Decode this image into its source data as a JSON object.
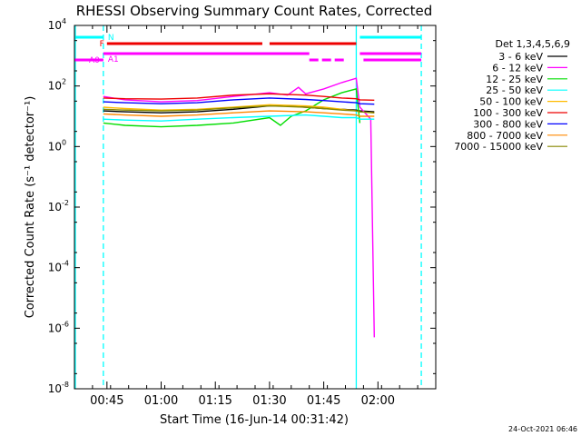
{
  "chart_data": {
    "type": "line",
    "title": "RHESSI Observing Summary Count Rates, Corrected",
    "xlabel": "Start Time (16-Jun-14 00:31:42)",
    "ylabel": "Corrected Count Rate (s⁻¹ detector⁻¹)",
    "yscale": "log",
    "xlim_minutes_after_0030": [
      6,
      40,
      106
    ],
    "xlim": [
      "00:36",
      "02:16"
    ],
    "ylim": [
      1e-08,
      10000
    ],
    "x_ticks": [
      "00:45",
      "01:00",
      "01:15",
      "01:30",
      "01:45",
      "02:00"
    ],
    "y_ticks": [
      {
        "base": "10",
        "exp": "4",
        "value": 10000
      },
      {
        "base": "10",
        "exp": "2",
        "value": 100
      },
      {
        "base": "10",
        "exp": "0",
        "value": 1
      },
      {
        "base": "10",
        "exp": "-2",
        "value": 0.01
      },
      {
        "base": "10",
        "exp": "-4",
        "value": 0.0001
      },
      {
        "base": "10",
        "exp": "-6",
        "value": 1e-06
      },
      {
        "base": "10",
        "exp": "-8",
        "value": 1e-08
      }
    ],
    "legend_title": "Det 1,3,4,5,6,9",
    "legend_placement": "right",
    "series": [
      {
        "name": "3 - 6 keV",
        "color": "#000000",
        "x": [
          "00:44",
          "00:50",
          "01:00",
          "01:10",
          "01:20",
          "01:30",
          "01:35",
          "01:40",
          "01:45",
          "01:50",
          "01:54",
          "01:55",
          "01:59"
        ],
        "y": [
          15,
          14,
          13,
          14,
          17,
          22,
          22,
          20,
          18,
          17,
          16,
          15,
          14
        ]
      },
      {
        "name": "6 - 12 keV",
        "color": "#ff00ff",
        "x": [
          "00:44",
          "00:50",
          "01:00",
          "01:10",
          "01:20",
          "01:30",
          "01:35",
          "01:38",
          "01:40",
          "01:45",
          "01:50",
          "01:54",
          "01:55",
          "01:58",
          "01:59"
        ],
        "y": [
          45,
          35,
          30,
          33,
          45,
          60,
          50,
          90,
          55,
          80,
          130,
          180,
          20,
          8,
          5e-07
        ]
      },
      {
        "name": "12 - 25 keV",
        "color": "#00dd00",
        "x": [
          "00:44",
          "00:50",
          "01:00",
          "01:10",
          "01:20",
          "01:30",
          "01:33",
          "01:36",
          "01:40",
          "01:45",
          "01:50",
          "01:54",
          "01:55"
        ],
        "y": [
          6,
          5,
          4.5,
          5,
          6,
          9,
          5,
          10,
          15,
          35,
          60,
          80,
          6
        ]
      },
      {
        "name": "25 - 50 keV",
        "color": "#00ffff",
        "x": [
          "00:44",
          "00:50",
          "01:00",
          "01:10",
          "01:20",
          "01:30",
          "01:40",
          "01:45",
          "01:50",
          "01:54",
          "01:55",
          "01:59"
        ],
        "y": [
          8,
          7.5,
          7,
          8,
          9,
          10,
          11,
          10,
          9,
          9,
          8,
          8
        ]
      },
      {
        "name": "50 - 100 keV",
        "color": "#ffbb00",
        "x": [
          "00:44",
          "00:50",
          "01:00",
          "01:10",
          "01:20",
          "01:30",
          "01:40",
          "01:45",
          "01:50",
          "01:54",
          "01:55",
          "01:59"
        ],
        "y": [
          20,
          18,
          16,
          17,
          20,
          24,
          22,
          20,
          17,
          15,
          14,
          13
        ]
      },
      {
        "name": "100 - 300 keV",
        "color": "#ee0000",
        "x": [
          "00:44",
          "00:50",
          "01:00",
          "01:10",
          "01:20",
          "01:30",
          "01:40",
          "01:45",
          "01:50",
          "01:54",
          "01:55",
          "01:59"
        ],
        "y": [
          40,
          38,
          37,
          40,
          50,
          55,
          50,
          45,
          40,
          38,
          35,
          34
        ]
      },
      {
        "name": "300 - 800 keV",
        "color": "#0000ff",
        "x": [
          "00:44",
          "00:50",
          "01:00",
          "01:10",
          "01:20",
          "01:30",
          "01:40",
          "01:45",
          "01:50",
          "01:54",
          "01:55",
          "01:59"
        ],
        "y": [
          30,
          28,
          26,
          28,
          35,
          40,
          36,
          33,
          30,
          28,
          26,
          25
        ]
      },
      {
        "name": "800 - 7000 keV",
        "color": "#ff8800",
        "x": [
          "00:44",
          "00:50",
          "01:00",
          "01:10",
          "01:20",
          "01:30",
          "01:40",
          "01:45",
          "01:50",
          "01:54",
          "01:55",
          "01:59"
        ],
        "y": [
          12,
          11,
          10,
          11,
          13,
          15,
          14,
          13,
          12,
          11,
          10,
          10
        ]
      },
      {
        "name": "7000 - 15000 keV",
        "color": "#888800",
        "x": [
          "00:44",
          "00:50",
          "01:00",
          "01:10",
          "01:20",
          "01:30",
          "01:40",
          "01:45",
          "01:50",
          "01:54",
          "01:55",
          "01:59"
        ],
        "y": [
          17,
          16,
          15,
          16,
          19,
          22,
          20,
          18,
          16,
          15,
          14,
          13
        ]
      }
    ],
    "flag_bars": [
      {
        "label": "N",
        "color": "#00ffff",
        "segments": [
          [
            "00:36",
            "00:44"
          ],
          [
            "01:55",
            "02:12"
          ]
        ]
      },
      {
        "label": "F",
        "color": "#ee0000",
        "segments": [
          [
            "00:45",
            "01:28"
          ],
          [
            "01:30",
            "01:54"
          ]
        ]
      },
      {
        "label": "A0",
        "color": "#ff00ff",
        "segments": [
          [
            "00:36",
            "00:44"
          ],
          [
            "01:56",
            "02:12"
          ]
        ]
      },
      {
        "label": "A1",
        "color": "#ff00ff",
        "segments": [
          [
            "00:44",
            "01:41"
          ],
          [
            "01:55",
            "02:12"
          ]
        ]
      }
    ],
    "vertical_lines": [
      {
        "time": "00:44",
        "color": "#00ffff",
        "style": "dashed"
      },
      {
        "time": "01:54",
        "color": "#00ffff",
        "style": "solid"
      },
      {
        "time": "02:12",
        "color": "#00ffff",
        "style": "dashed"
      }
    ]
  },
  "footer_timestamp": "24-Oct-2021 06:46"
}
